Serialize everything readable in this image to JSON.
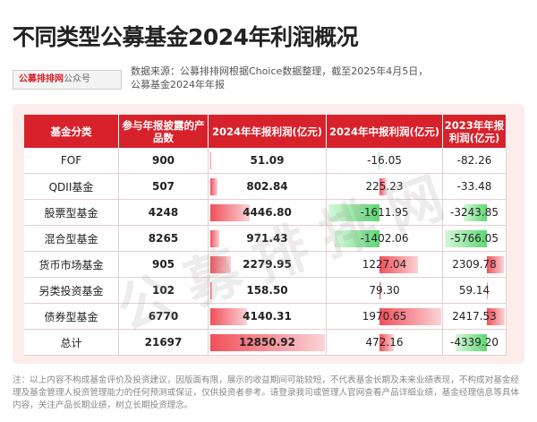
{
  "header": {
    "title": "不同类型公募基金2024年利润概况",
    "logo": {
      "brand": "公募排排网",
      "suffix": "公众号"
    },
    "source": [
      "数据来源：公募排排网根据Choice数据整理，截至2025年4月5日，",
      "公募基金2024年年报"
    ]
  },
  "table": {
    "columns": [
      "基金分类",
      "参与年报披露的产品数",
      "2024年年报利润(亿元)",
      "2024年中报利润(亿元)",
      "2023年年报利润(亿元)"
    ],
    "rows": [
      [
        "FOF",
        "900",
        "51.09",
        "-16.05",
        "-82.26"
      ],
      [
        "QDII基金",
        "507",
        "802.84",
        "225.23",
        "-33.48"
      ],
      [
        "股票型基金",
        "4248",
        "4446.80",
        "-1611.95",
        "-3243.85"
      ],
      [
        "混合型基金",
        "8265",
        "971.43",
        "-1402.06",
        "-5766.05"
      ],
      [
        "货币市场基金",
        "905",
        "2279.95",
        "1227.04",
        "2309.78"
      ],
      [
        "另类投资基金",
        "102",
        "158.50",
        "79.30",
        "59.14"
      ],
      [
        "债券型基金",
        "6770",
        "4140.31",
        "1970.65",
        "2417.53"
      ],
      [
        "总计",
        "21697",
        "12850.92",
        "472.16",
        "-4339.20"
      ]
    ]
  },
  "watermark": "公募排排网",
  "note": "注：以上内容不构成基金评价及投资建议，因版面有限，展示的收益期间可能较短，不代表基金长期及未来业绩表现，不构成对基金经理及基金管理人投资管理能力的任何预测或保证，仅供投资者参考。请登录我司或管理人官网查看产品详细业绩，基金经理信息等具体内容，关注产品长期业绩，树立长期投资理念。"
}
